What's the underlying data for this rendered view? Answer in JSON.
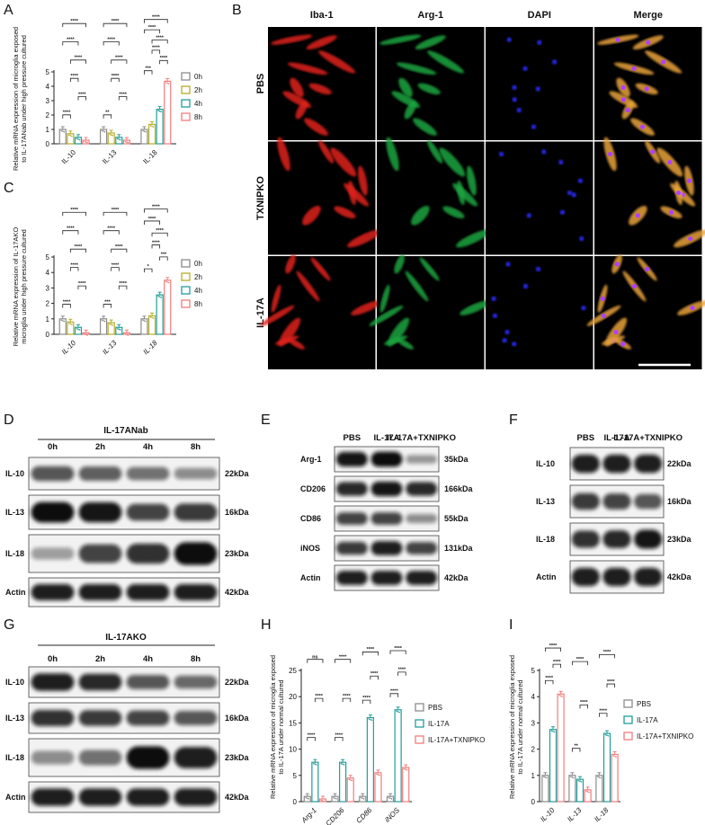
{
  "panel_letters": [
    "A",
    "B",
    "C",
    "D",
    "E",
    "F",
    "G",
    "H",
    "I"
  ],
  "colors": {
    "gray": "#8c8c8c",
    "olive": "#b5ad2a",
    "teal": "#1f9e9a",
    "salmon": "#f27d7d",
    "red": "#e0201c",
    "green": "#1fa540",
    "blue": "#2b2bff"
  },
  "chart_data": [
    {
      "panel": "A",
      "type": "bar",
      "ylabel": "Relative mRNA expression of microglia exposed to IL-17ANab under high pressure cultured",
      "categories": [
        "IL-10",
        "IL-13",
        "IL-18"
      ],
      "ylim": [
        0,
        5
      ],
      "yticks": [
        "0",
        "1",
        "2",
        "3",
        "4",
        "5"
      ],
      "series": [
        {
          "name": "0h",
          "values": [
            1.0,
            1.0,
            1.0
          ]
        },
        {
          "name": "2h",
          "values": [
            0.7,
            0.75,
            1.35
          ]
        },
        {
          "name": "4h",
          "values": [
            0.45,
            0.45,
            2.4
          ]
        },
        {
          "name": "8h",
          "values": [
            0.25,
            0.25,
            4.35
          ]
        }
      ],
      "sig": [
        {
          "cat": 0,
          "a": 0,
          "b": 1,
          "t": "****"
        },
        {
          "cat": 0,
          "a": 2,
          "b": 3,
          "t": "****"
        },
        {
          "cat": 0,
          "a": 1,
          "b": 2,
          "t": "****"
        },
        {
          "cat": 0,
          "a": 1,
          "b": 3,
          "t": "****"
        },
        {
          "cat": 0,
          "a": 0,
          "b": 2,
          "t": "****"
        },
        {
          "cat": 0,
          "a": 0,
          "b": 3,
          "t": "****"
        },
        {
          "cat": 1,
          "a": 0,
          "b": 1,
          "t": "**"
        },
        {
          "cat": 1,
          "a": 2,
          "b": 3,
          "t": "****"
        },
        {
          "cat": 1,
          "a": 1,
          "b": 2,
          "t": "****"
        },
        {
          "cat": 1,
          "a": 1,
          "b": 3,
          "t": "****"
        },
        {
          "cat": 1,
          "a": 0,
          "b": 2,
          "t": "****"
        },
        {
          "cat": 1,
          "a": 0,
          "b": 3,
          "t": "****"
        },
        {
          "cat": 2,
          "a": 0,
          "b": 1,
          "t": "***"
        },
        {
          "cat": 2,
          "a": 2,
          "b": 3,
          "t": "****"
        },
        {
          "cat": 2,
          "a": 1,
          "b": 2,
          "t": "****"
        },
        {
          "cat": 2,
          "a": 1,
          "b": 3,
          "t": "****"
        },
        {
          "cat": 2,
          "a": 0,
          "b": 2,
          "t": "****"
        },
        {
          "cat": 2,
          "a": 0,
          "b": 3,
          "t": "****"
        }
      ]
    },
    {
      "panel": "C",
      "type": "bar",
      "ylabel": "Relative mRNA expression of IL-17AKO microglia under high pressure cultured",
      "categories": [
        "IL-10",
        "IL-13",
        "IL-18"
      ],
      "ylim": [
        0,
        5
      ],
      "yticks": [
        "0",
        "1",
        "2",
        "3",
        "4",
        "5"
      ],
      "series": [
        {
          "name": "0h",
          "values": [
            1.0,
            1.0,
            1.0
          ]
        },
        {
          "name": "2h",
          "values": [
            0.8,
            0.75,
            1.2
          ]
        },
        {
          "name": "4h",
          "values": [
            0.45,
            0.45,
            2.55
          ]
        },
        {
          "name": "8h",
          "values": [
            0.1,
            0.1,
            3.5
          ]
        }
      ],
      "sig": [
        {
          "cat": 0,
          "a": 0,
          "b": 1,
          "t": "****"
        },
        {
          "cat": 0,
          "a": 2,
          "b": 3,
          "t": "****"
        },
        {
          "cat": 0,
          "a": 1,
          "b": 2,
          "t": "****"
        },
        {
          "cat": 0,
          "a": 1,
          "b": 3,
          "t": "****"
        },
        {
          "cat": 0,
          "a": 0,
          "b": 2,
          "t": "****"
        },
        {
          "cat": 0,
          "a": 0,
          "b": 3,
          "t": "****"
        },
        {
          "cat": 1,
          "a": 0,
          "b": 1,
          "t": "***"
        },
        {
          "cat": 1,
          "a": 2,
          "b": 3,
          "t": "****"
        },
        {
          "cat": 1,
          "a": 1,
          "b": 2,
          "t": "****"
        },
        {
          "cat": 1,
          "a": 1,
          "b": 3,
          "t": "****"
        },
        {
          "cat": 1,
          "a": 0,
          "b": 2,
          "t": "****"
        },
        {
          "cat": 1,
          "a": 0,
          "b": 3,
          "t": "****"
        },
        {
          "cat": 2,
          "a": 0,
          "b": 1,
          "t": "*"
        },
        {
          "cat": 2,
          "a": 2,
          "b": 3,
          "t": "***"
        },
        {
          "cat": 2,
          "a": 1,
          "b": 2,
          "t": "****"
        },
        {
          "cat": 2,
          "a": 1,
          "b": 3,
          "t": "****"
        },
        {
          "cat": 2,
          "a": 0,
          "b": 2,
          "t": "****"
        },
        {
          "cat": 2,
          "a": 0,
          "b": 3,
          "t": "****"
        }
      ]
    },
    {
      "panel": "H",
      "type": "bar",
      "ylabel": "Relative mRNA expression of microglia exposed to IL-17A under normal cultured",
      "categories": [
        "Arg-1",
        "CD206",
        "CD86",
        "iNOS"
      ],
      "ylim": [
        0,
        25
      ],
      "yticks": [
        "0",
        "5",
        "10",
        "15",
        "20",
        "25"
      ],
      "series": [
        {
          "name": "PBS",
          "values": [
            1.0,
            1.0,
            1.0,
            1.0
          ]
        },
        {
          "name": "IL-17A",
          "values": [
            7.5,
            7.5,
            16.0,
            17.5
          ]
        },
        {
          "name": "IL-17A+TXNIPKO",
          "values": [
            0.5,
            4.5,
            5.5,
            6.5
          ]
        }
      ],
      "sig": [
        {
          "cat": 0,
          "a": 0,
          "b": 1,
          "t": "****"
        },
        {
          "cat": 0,
          "a": 1,
          "b": 2,
          "t": "****"
        },
        {
          "cat": 0,
          "a": 0,
          "b": 2,
          "t": "ns"
        },
        {
          "cat": 1,
          "a": 0,
          "b": 1,
          "t": "****"
        },
        {
          "cat": 1,
          "a": 1,
          "b": 2,
          "t": "****"
        },
        {
          "cat": 1,
          "a": 0,
          "b": 2,
          "t": "****"
        },
        {
          "cat": 2,
          "a": 0,
          "b": 1,
          "t": "****"
        },
        {
          "cat": 2,
          "a": 1,
          "b": 2,
          "t": "****"
        },
        {
          "cat": 2,
          "a": 0,
          "b": 2,
          "t": "****"
        },
        {
          "cat": 3,
          "a": 0,
          "b": 1,
          "t": "****"
        },
        {
          "cat": 3,
          "a": 1,
          "b": 2,
          "t": "****"
        },
        {
          "cat": 3,
          "a": 0,
          "b": 2,
          "t": "****"
        }
      ]
    },
    {
      "panel": "I",
      "type": "bar",
      "ylabel": "Relative mRNA expression of microglia exposed to IL-17A under normal cultured",
      "categories": [
        "IL-10",
        "IL-13",
        "IL-18"
      ],
      "ylim": [
        0,
        5
      ],
      "yticks": [
        "0",
        "1",
        "2",
        "3",
        "4",
        "5"
      ],
      "series": [
        {
          "name": "PBS",
          "values": [
            1.0,
            1.0,
            1.0
          ]
        },
        {
          "name": "IL-17A",
          "values": [
            2.75,
            0.85,
            2.6
          ]
        },
        {
          "name": "IL-17A+TXNIPKO",
          "values": [
            4.1,
            0.45,
            1.8
          ]
        }
      ],
      "sig": [
        {
          "cat": 0,
          "a": 0,
          "b": 1,
          "t": "****"
        },
        {
          "cat": 0,
          "a": 1,
          "b": 2,
          "t": "****"
        },
        {
          "cat": 0,
          "a": 0,
          "b": 2,
          "t": "****"
        },
        {
          "cat": 1,
          "a": 0,
          "b": 1,
          "t": "**"
        },
        {
          "cat": 1,
          "a": 1,
          "b": 2,
          "t": "****"
        },
        {
          "cat": 1,
          "a": 0,
          "b": 2,
          "t": "****"
        },
        {
          "cat": 2,
          "a": 0,
          "b": 1,
          "t": "****"
        },
        {
          "cat": 2,
          "a": 1,
          "b": 2,
          "t": "****"
        },
        {
          "cat": 2,
          "a": 0,
          "b": 2,
          "t": "****"
        }
      ]
    }
  ],
  "panelB": {
    "columns": [
      "Iba-1",
      "Arg-1",
      "DAPI",
      "Merge"
    ],
    "rows": [
      "PBS",
      "TXNIPKO",
      "IL-17A"
    ]
  },
  "blots": {
    "D": {
      "title": "IL-17ANab",
      "lanes": [
        "0h",
        "2h",
        "4h",
        "8h"
      ],
      "rows": [
        {
          "label": "IL-10",
          "kda": "22kDa",
          "band": [
            0.6,
            0.55,
            0.45,
            0.3
          ]
        },
        {
          "label": "IL-13",
          "kda": "16kDa",
          "band": [
            1.0,
            0.95,
            0.7,
            0.75
          ]
        },
        {
          "label": "IL-18",
          "kda": "23kDa",
          "band": [
            0.2,
            0.7,
            0.8,
            1.0
          ]
        },
        {
          "label": "Actin",
          "kda": "42kDa",
          "band": [
            0.9,
            0.9,
            0.9,
            0.9
          ]
        }
      ]
    },
    "E": {
      "lanes": [
        "PBS",
        "IL-17A",
        "IL-17A+TXNIPKO"
      ],
      "rows": [
        {
          "label": "Arg-1",
          "kda": "35kDa",
          "band": [
            0.95,
            1.0,
            0.25
          ]
        },
        {
          "label": "CD206",
          "kda": "166kDa",
          "band": [
            0.85,
            0.95,
            0.85
          ]
        },
        {
          "label": "CD86",
          "kda": "55kDa",
          "band": [
            0.7,
            0.7,
            0.3
          ]
        },
        {
          "label": "iNOS",
          "kda": "131kDa",
          "band": [
            0.75,
            0.9,
            0.7
          ]
        },
        {
          "label": "Actin",
          "kda": "42kDa",
          "band": [
            0.9,
            0.9,
            0.9
          ]
        }
      ]
    },
    "F": {
      "lanes": [
        "PBS",
        "IL-17A",
        "IL-17A+TXNIPKO"
      ],
      "rows": [
        {
          "label": "IL-10",
          "kda": "22kDa",
          "band": [
            0.9,
            0.9,
            0.9
          ]
        },
        {
          "label": "IL-13",
          "kda": "16kDa",
          "band": [
            0.75,
            0.7,
            0.6
          ]
        },
        {
          "label": "IL-18",
          "kda": "23kDa",
          "band": [
            0.8,
            0.85,
            0.95
          ]
        },
        {
          "label": "Actin",
          "kda": "42kDa",
          "band": [
            0.9,
            0.9,
            0.9
          ]
        }
      ]
    },
    "G": {
      "title": "IL-17AKO",
      "lanes": [
        "0h",
        "2h",
        "4h",
        "8h"
      ],
      "rows": [
        {
          "label": "IL-10",
          "kda": "22kDa",
          "band": [
            0.9,
            0.85,
            0.6,
            0.5
          ]
        },
        {
          "label": "IL-13",
          "kda": "16kDa",
          "band": [
            0.8,
            0.75,
            0.7,
            0.6
          ]
        },
        {
          "label": "IL-18",
          "kda": "23kDa",
          "band": [
            0.3,
            0.45,
            1.0,
            0.9
          ]
        },
        {
          "label": "Actin",
          "kda": "42kDa",
          "band": [
            0.9,
            0.9,
            0.9,
            0.9
          ]
        }
      ]
    }
  }
}
